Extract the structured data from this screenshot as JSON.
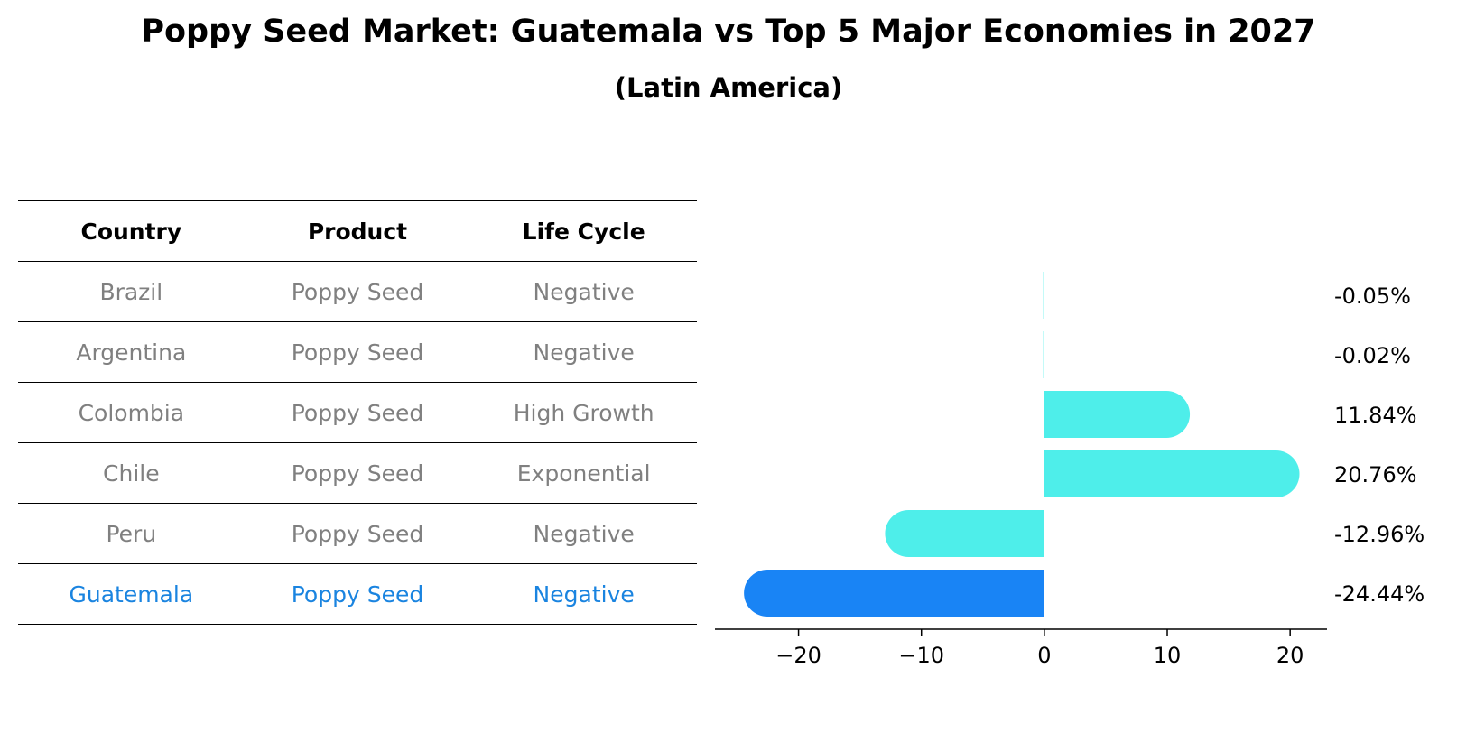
{
  "title": "Poppy Seed Market: Guatemala vs Top 5 Major Economies in 2027",
  "subtitle": "(Latin America)",
  "table": {
    "headers": [
      "Country",
      "Product",
      "Life Cycle"
    ],
    "rows": [
      [
        "Brazil",
        "Poppy Seed",
        "Negative"
      ],
      [
        "Argentina",
        "Poppy Seed",
        "Negative"
      ],
      [
        "Colombia",
        "Poppy Seed",
        "High Growth"
      ],
      [
        "Chile",
        "Poppy Seed",
        "Exponential"
      ],
      [
        "Peru",
        "Poppy Seed",
        "Negative"
      ],
      [
        "Guatemala",
        "Poppy Seed",
        "Negative"
      ]
    ],
    "highlight_row": 5
  },
  "colors": {
    "bar": "#4eeeea",
    "highlight_bar": "#1984f5",
    "table_text": "#808080",
    "highlight_text": "#1a84e0"
  },
  "chart_data": {
    "type": "bar",
    "orientation": "horizontal",
    "categories": [
      "Brazil",
      "Argentina",
      "Colombia",
      "Chile",
      "Peru",
      "Guatemala"
    ],
    "values": [
      -0.05,
      -0.02,
      11.84,
      20.76,
      -12.96,
      -24.44
    ],
    "value_labels": [
      "-0.05%",
      "-0.02%",
      "11.84%",
      "20.76%",
      "-12.96%",
      "-24.44%"
    ],
    "highlight": "Guatemala",
    "xlim": [
      -26.8,
      23
    ],
    "xticks": [
      -20,
      -10,
      0,
      10,
      20
    ],
    "xtick_labels": [
      "−20",
      "−10",
      "0",
      "10",
      "20"
    ],
    "xlabel": "",
    "ylabel": "",
    "grid": false
  }
}
